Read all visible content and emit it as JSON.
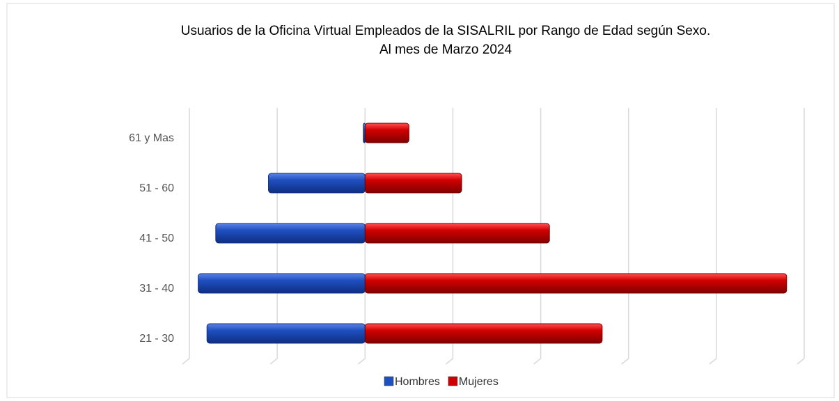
{
  "chart_data": {
    "type": "bar",
    "title": "Usuarios de la Oficina Virtual Empleados de la SISALRIL por Rango de Edad según Sexo.",
    "subtitle": "Al mes de Marzo 2024",
    "categories": [
      "61 y Mas",
      "51 - 60",
      "41 - 50",
      "31 - 40",
      "21 - 30"
    ],
    "series": [
      {
        "name": "Hombres",
        "color": "#1f4fc0",
        "values": [
          0.2,
          11,
          17,
          19,
          18
        ]
      },
      {
        "name": "Mujeres",
        "color": "#d00000",
        "values": [
          5,
          11,
          21,
          48,
          27
        ]
      }
    ],
    "xlim": [
      -20,
      50
    ],
    "xticks": [
      -20,
      -10,
      0,
      10,
      20,
      30,
      40,
      50
    ],
    "grid": true,
    "legend": "bottom"
  }
}
